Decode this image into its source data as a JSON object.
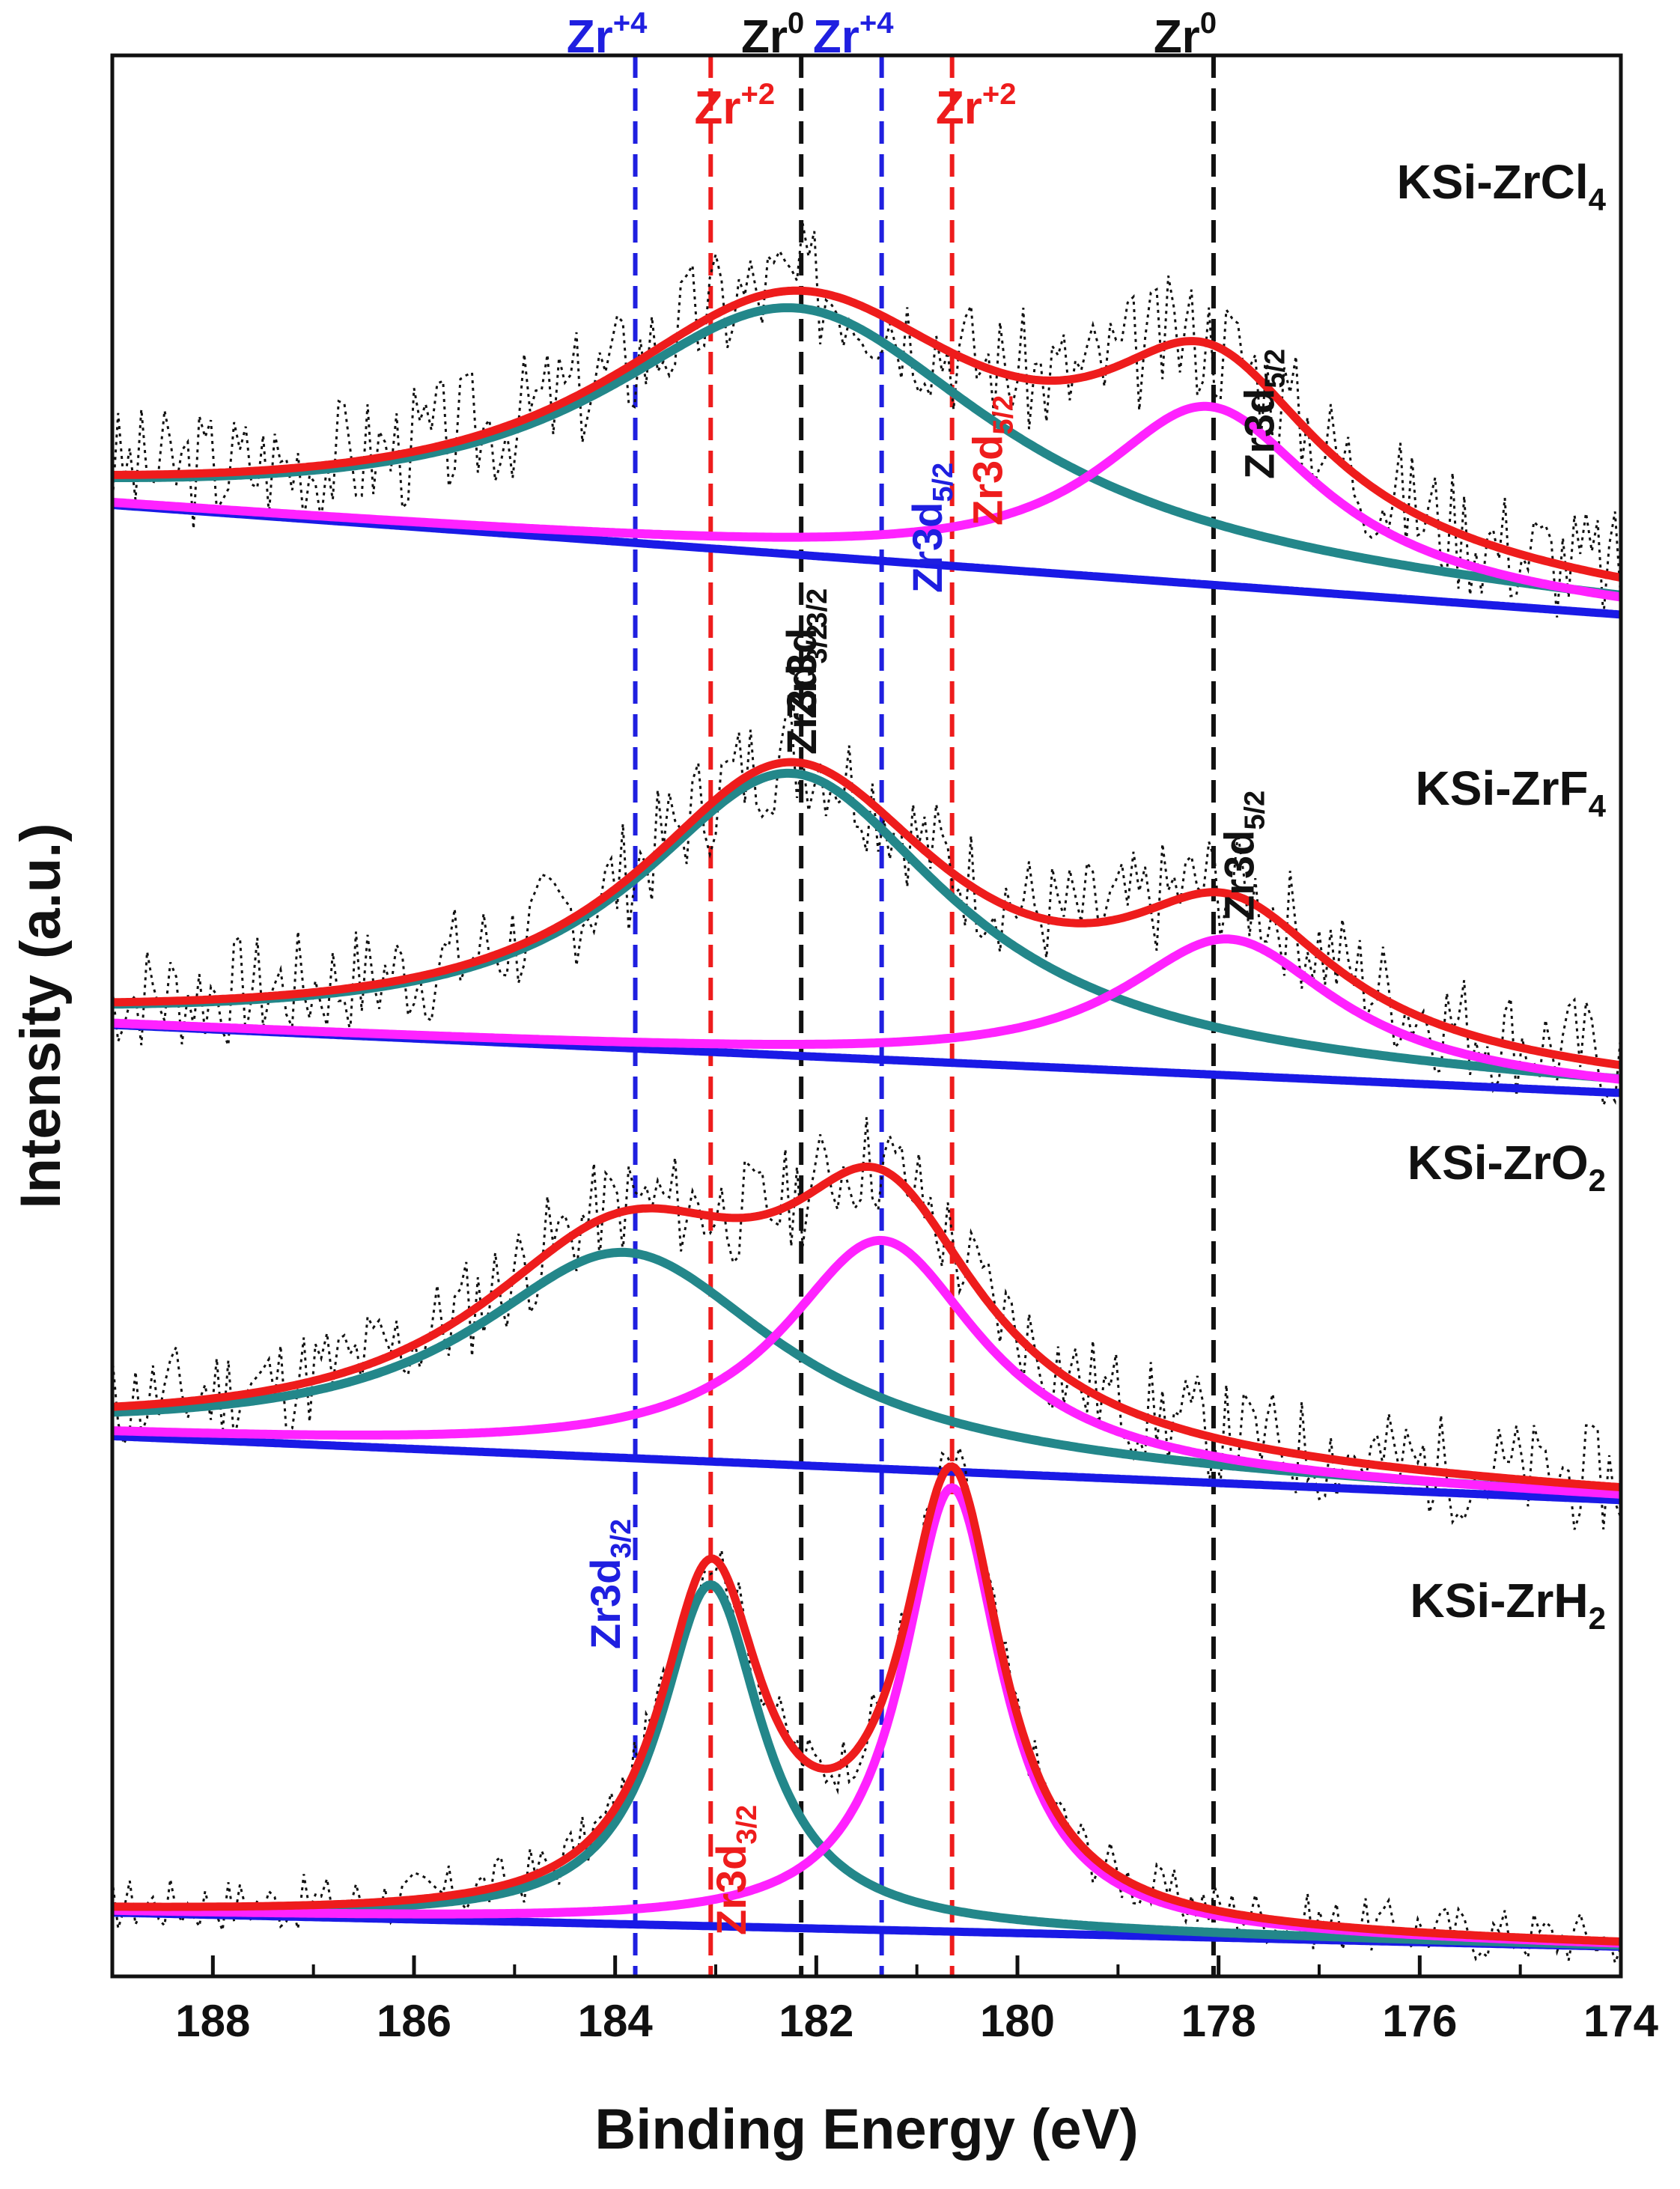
{
  "chart_data": {
    "type": "line",
    "xlabel": "Binding Energy (eV)",
    "ylabel": "Intensity (a.u.)",
    "xlim": [
      189,
      174
    ],
    "x_reversed": true,
    "xticks": [
      188,
      186,
      184,
      182,
      180,
      178,
      176,
      174
    ],
    "yticks_shown": false,
    "grid": false,
    "reference_lines": [
      {
        "x": 183.8,
        "color": "#1f1fe0",
        "label": "Zr",
        "sup": "+4",
        "label_row": "top"
      },
      {
        "x": 183.05,
        "color": "#ee1c1c",
        "label": "Zr",
        "sup": "+2",
        "label_row": "second"
      },
      {
        "x": 182.15,
        "color": "#111111",
        "label": "Zr",
        "sup": "0",
        "label_row": "top"
      },
      {
        "x": 181.35,
        "color": "#1f1fe0",
        "label": "Zr",
        "sup": "+4",
        "label_row": "top"
      },
      {
        "x": 180.65,
        "color": "#ee1c1c",
        "label": "Zr",
        "sup": "+2",
        "label_row": "second"
      },
      {
        "x": 178.05,
        "color": "#111111",
        "label": "Zr",
        "sup": "0",
        "label_row": "top"
      }
    ],
    "panels": [
      {
        "name": "KSi-ZrCl",
        "name_sub": "4",
        "peak_labels": [
          {
            "text": "Zr3d",
            "sub": "3/2",
            "x": 182.15,
            "color": "#111111"
          },
          {
            "text": "Zr3d",
            "sub": "5/2",
            "x": 177.6,
            "color": "#111111"
          }
        ],
        "components": [
          {
            "name": "Zr3d3/2",
            "center": 182.2,
            "height": 0.54,
            "width": 2.4,
            "color": "#23878a"
          },
          {
            "name": "Zr3d5/2",
            "center": 178.1,
            "height": 0.39,
            "width": 1.35,
            "color": "#ff22ff"
          }
        ],
        "background": {
          "start": 0.05,
          "end": -0.19,
          "color": "#1a1ae6"
        },
        "noise_amplitude": 0.14,
        "noise_seed": 3
      },
      {
        "name": "KSi-ZrF",
        "name_sub": "4",
        "peak_labels": [
          {
            "text": "Zr3d",
            "sub": "3/2",
            "x": 182.15,
            "color": "#111111"
          },
          {
            "text": "Zr3d",
            "sub": "5/2",
            "x": 177.8,
            "color": "#111111"
          }
        ],
        "components": [
          {
            "name": "Zr3d3/2",
            "center": 182.25,
            "height": 0.58,
            "width": 1.9,
            "color": "#23878a"
          },
          {
            "name": "Zr3d5/2",
            "center": 177.9,
            "height": 0.28,
            "width": 1.3,
            "color": "#ff22ff"
          }
        ],
        "background": {
          "start": 0.04,
          "end": -0.1,
          "color": "#1a1ae6"
        },
        "noise_amplitude": 0.12,
        "noise_seed": 7
      },
      {
        "name": "KSi-ZrO",
        "name_sub": "2",
        "peak_labels": [
          {
            "text": "Zr3d",
            "sub": "3/2",
            "x": 184.1,
            "color": "#1f1fe0"
          },
          {
            "text": "Zr3d",
            "sub": "5/2",
            "x": 180.9,
            "color": "#1f1fe0"
          }
        ],
        "components": [
          {
            "name": "Zr3d3/2",
            "center": 183.9,
            "height": 0.45,
            "width": 1.85,
            "color": "#23878a"
          },
          {
            "name": "Zr3d5/2",
            "center": 181.35,
            "height": 0.5,
            "width": 1.2,
            "color": "#ff22ff"
          }
        ],
        "background": {
          "start": 0.06,
          "end": -0.08,
          "color": "#1a1ae6"
        },
        "noise_amplitude": 0.12,
        "noise_seed": 11
      },
      {
        "name": "KSi-ZrH",
        "name_sub": "2",
        "peak_labels": [
          {
            "text": "Zr3d",
            "sub": "3/2",
            "x": 182.85,
            "color": "#ee1c1c"
          },
          {
            "text": "Zr3d",
            "sub": "5/2",
            "x": 180.3,
            "color": "#ee1c1c"
          }
        ],
        "components": [
          {
            "name": "Zr3d3/2",
            "center": 183.05,
            "height": 0.6,
            "width": 0.62,
            "color": "#23878a"
          },
          {
            "name": "Zr3d5/2",
            "center": 180.65,
            "height": 0.78,
            "width": 0.6,
            "color": "#ff22ff"
          }
        ],
        "background": {
          "start": 0.02,
          "end": -0.04,
          "color": "#1a1ae6"
        },
        "noise_amplitude": 0.05,
        "noise_seed": 17
      }
    ],
    "colors": {
      "envelope": "#ee1c1c",
      "raw_data": "#111111"
    }
  }
}
